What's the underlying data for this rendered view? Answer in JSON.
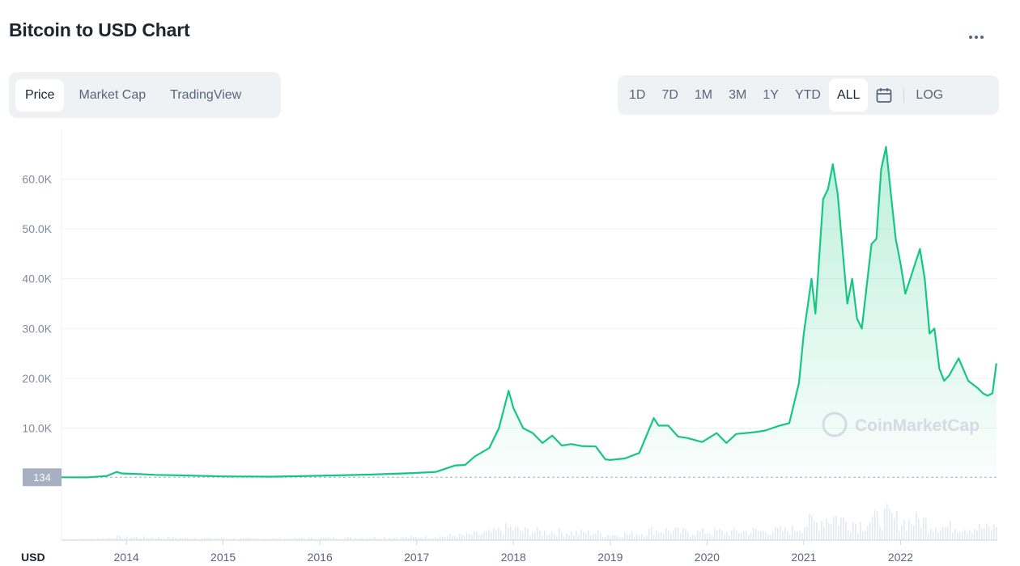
{
  "header": {
    "title": "Bitcoin to USD Chart",
    "more_icon": "more-dots-icon"
  },
  "tabs": [
    {
      "label": "Price",
      "active": true
    },
    {
      "label": "Market Cap",
      "active": false
    },
    {
      "label": "TradingView",
      "active": false
    }
  ],
  "ranges": [
    {
      "label": "1D",
      "active": false
    },
    {
      "label": "7D",
      "active": false
    },
    {
      "label": "1M",
      "active": false
    },
    {
      "label": "3M",
      "active": false
    },
    {
      "label": "1Y",
      "active": false
    },
    {
      "label": "YTD",
      "active": false
    },
    {
      "label": "ALL",
      "active": true
    }
  ],
  "calendar_icon": "calendar-icon",
  "log_label": "LOG",
  "watermark": "CoinMarketCap",
  "colors": {
    "line": "#16c784",
    "accent_bg": "#eff2f5",
    "grid": "#eff2f5",
    "text_muted": "#808a9d",
    "marker": "#a6b0c3",
    "volume": "#cfd6e4"
  },
  "chart_data": {
    "type": "line",
    "currency_label": "USD",
    "current_marker": "134",
    "marker_value": 134,
    "ylim": [
      -12500,
      70000
    ],
    "xlim": [
      2013.33,
      2023.0
    ],
    "yticks": [
      10000,
      20000,
      30000,
      40000,
      50000,
      60000
    ],
    "ytick_labels": [
      "10.0K",
      "20.0K",
      "30.0K",
      "40.0K",
      "50.0K",
      "60.0K"
    ],
    "xticks": [
      2014,
      2015,
      2016,
      2017,
      2018,
      2019,
      2020,
      2021,
      2022
    ],
    "xtick_labels": [
      "2014",
      "2015",
      "2016",
      "2017",
      "2018",
      "2019",
      "2020",
      "2021",
      "2022"
    ],
    "grid": true,
    "series": [
      {
        "x": [
          2013.33,
          2013.6,
          2013.8,
          2013.9,
          2013.95,
          2014.1,
          2014.3,
          2014.6,
          2015.0,
          2015.5,
          2016.0,
          2016.5,
          2017.0,
          2017.2,
          2017.4,
          2017.5,
          2017.6,
          2017.75,
          2017.85,
          2017.95,
          2018.0,
          2018.1,
          2018.2,
          2018.3,
          2018.4,
          2018.5,
          2018.6,
          2018.7,
          2018.85,
          2018.95,
          2019.0,
          2019.15,
          2019.3,
          2019.45,
          2019.5,
          2019.6,
          2019.7,
          2019.8,
          2019.95,
          2020.1,
          2020.2,
          2020.3,
          2020.5,
          2020.6,
          2020.75,
          2020.85,
          2020.95,
          2021.0,
          2021.08,
          2021.12,
          2021.2,
          2021.25,
          2021.3,
          2021.35,
          2021.45,
          2021.5,
          2021.55,
          2021.6,
          2021.7,
          2021.75,
          2021.8,
          2021.85,
          2021.9,
          2021.95,
          2022.0,
          2022.05,
          2022.1,
          2022.2,
          2022.25,
          2022.3,
          2022.35,
          2022.4,
          2022.45,
          2022.5,
          2022.6,
          2022.7,
          2022.8,
          2022.85,
          2022.9,
          2022.95,
          2022.99
        ],
        "y": [
          120,
          100,
          400,
          1200,
          900,
          800,
          600,
          500,
          300,
          250,
          430,
          650,
          1000,
          1200,
          2500,
          2600,
          4300,
          6000,
          10000,
          17500,
          14000,
          10000,
          9000,
          7000,
          8500,
          6500,
          6800,
          6400,
          6300,
          3700,
          3600,
          3900,
          5000,
          12000,
          10500,
          10500,
          8300,
          8000,
          7200,
          9000,
          7000,
          8800,
          9200,
          9500,
          10500,
          11000,
          19000,
          29000,
          40000,
          33000,
          56000,
          58000,
          63000,
          57000,
          35000,
          40000,
          32000,
          30000,
          47000,
          48000,
          62000,
          66500,
          57000,
          48000,
          43000,
          37000,
          40000,
          46000,
          40000,
          29000,
          30000,
          22000,
          19500,
          20500,
          24000,
          19500,
          18000,
          17000,
          16500,
          17000,
          23000
        ]
      }
    ]
  }
}
